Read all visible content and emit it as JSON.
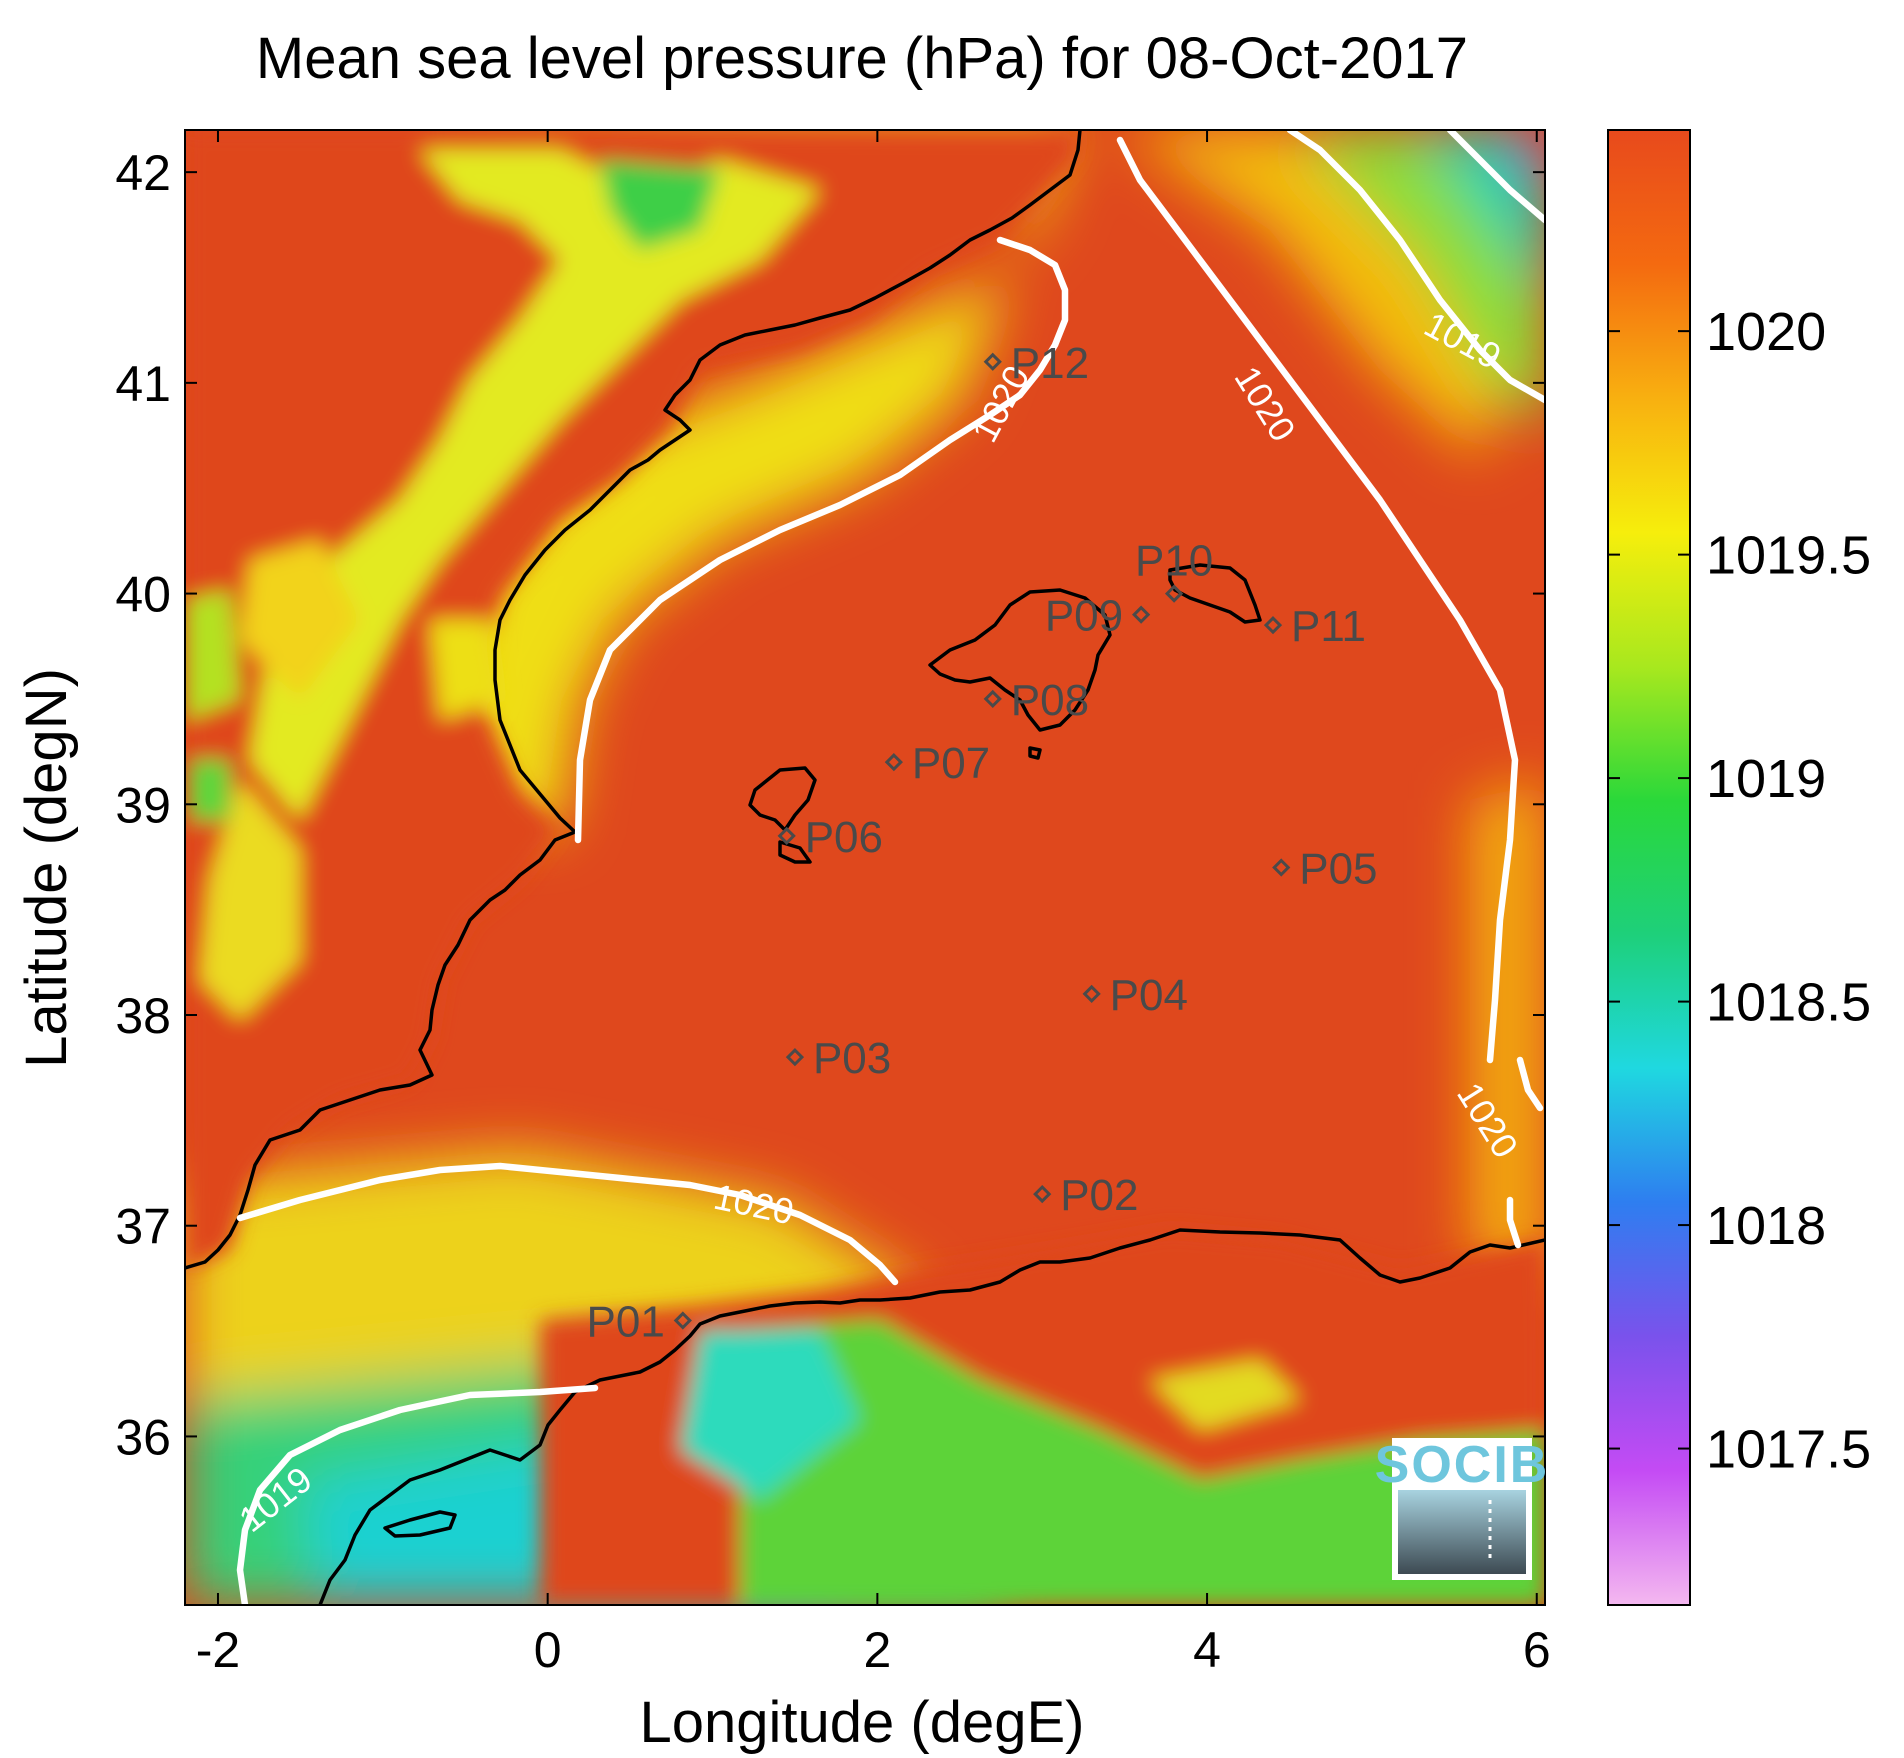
{
  "chart_data": {
    "type": "heatmap",
    "title": "Mean sea level pressure (hPa) for 08-Oct-2017",
    "xlabel": "Longitude (degE)",
    "ylabel": "Latitude (degN)",
    "xlim": [
      -2.2,
      6.05
    ],
    "ylim": [
      35.2,
      42.2
    ],
    "xticks": [
      -2,
      0,
      2,
      4,
      6
    ],
    "yticks": [
      36,
      37,
      38,
      39,
      40,
      41,
      42
    ],
    "colorbar": {
      "range": [
        1017.15,
        1020.45
      ],
      "ticks": [
        1017.5,
        1018,
        1018.5,
        1019,
        1019.5,
        1020
      ],
      "colormap": [
        "#f4b8f0",
        "#c44bf4",
        "#7a52ec",
        "#2e7ef0",
        "#1fd8e0",
        "#1ed07a",
        "#2ad83a",
        "#a8e81e",
        "#f6ee0c",
        "#f8b010",
        "#f46a10",
        "#e84a1c"
      ]
    },
    "contour_labels": [
      {
        "value": "1020",
        "lon": 2.75,
        "lat": 40.9,
        "angle": -62
      },
      {
        "value": "1020",
        "lon": 4.35,
        "lat": 40.9,
        "angle": 58
      },
      {
        "value": "1019",
        "lon": 5.55,
        "lat": 41.2,
        "angle": 28
      },
      {
        "value": "1020",
        "lon": 1.25,
        "lat": 37.1,
        "angle": 12
      },
      {
        "value": "1020",
        "lon": 5.7,
        "lat": 37.5,
        "angle": 58
      },
      {
        "value": "1019",
        "lon": -1.65,
        "lat": 35.7,
        "angle": -38
      }
    ],
    "stations": [
      {
        "name": "P01",
        "lon": 0.82,
        "lat": 36.55,
        "label_side": "left"
      },
      {
        "name": "P02",
        "lon": 3.0,
        "lat": 37.15,
        "label_side": "right"
      },
      {
        "name": "P03",
        "lon": 1.5,
        "lat": 37.8,
        "label_side": "right"
      },
      {
        "name": "P04",
        "lon": 3.3,
        "lat": 38.1,
        "label_side": "right"
      },
      {
        "name": "P05",
        "lon": 4.45,
        "lat": 38.7,
        "label_side": "right"
      },
      {
        "name": "P06",
        "lon": 1.45,
        "lat": 38.85,
        "label_side": "right"
      },
      {
        "name": "P07",
        "lon": 2.1,
        "lat": 39.2,
        "label_side": "right"
      },
      {
        "name": "P08",
        "lon": 2.7,
        "lat": 39.5,
        "label_side": "right"
      },
      {
        "name": "P09",
        "lon": 3.6,
        "lat": 39.9,
        "label_side": "left"
      },
      {
        "name": "P10",
        "lon": 3.8,
        "lat": 40.0,
        "label_side": "above"
      },
      {
        "name": "P11",
        "lon": 4.4,
        "lat": 39.85,
        "label_side": "right"
      },
      {
        "name": "P12",
        "lon": 2.7,
        "lat": 41.1,
        "label_side": "right"
      }
    ]
  },
  "logo": {
    "text": "SOCIB"
  }
}
